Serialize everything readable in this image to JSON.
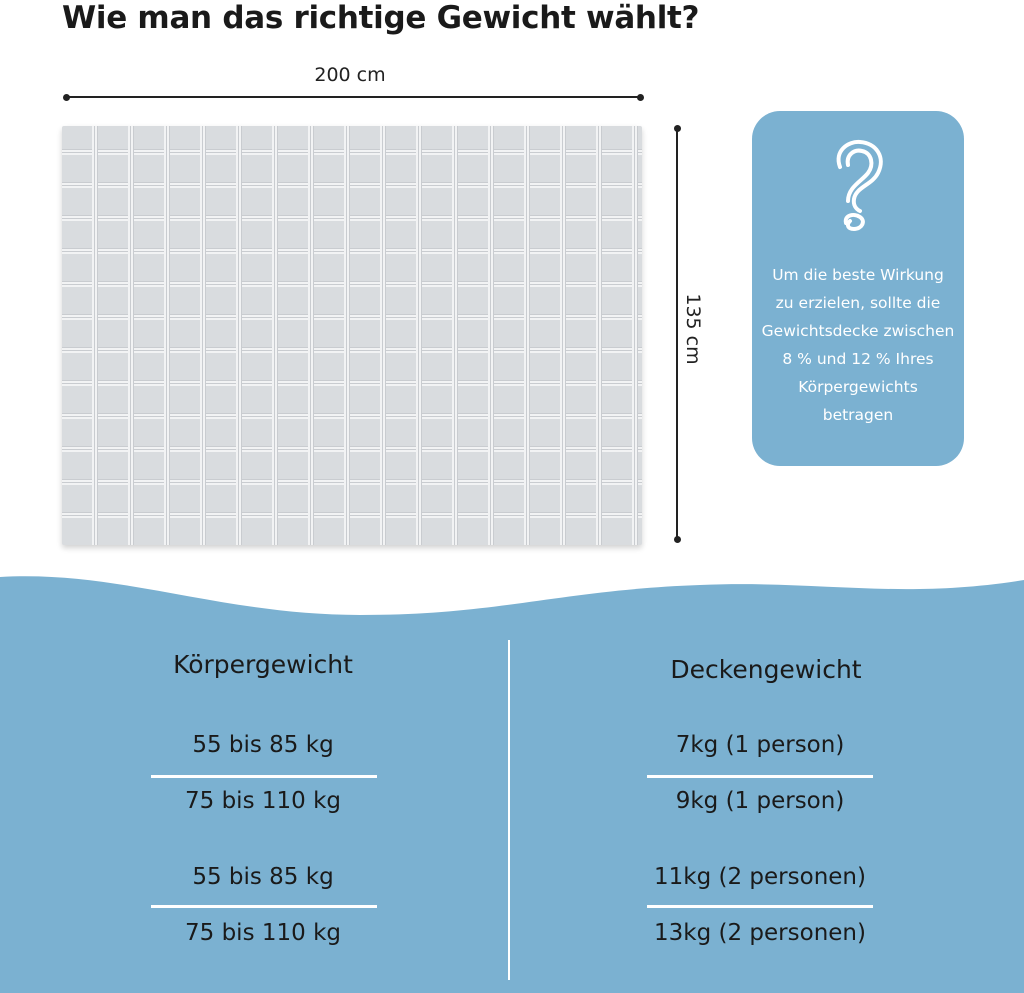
{
  "title": "Wie man das richtige Gewicht wählt?",
  "dimensions": {
    "width_label": "200 cm",
    "height_label": "135 cm"
  },
  "info_box": {
    "icon": "question-mark-icon",
    "lines": [
      "Um die beste Wirkung",
      "zu erzielen, sollte die",
      "Gewichtsdecke zwischen",
      "8 % und 12 % Ihres",
      "Körpergewichts",
      "betragen"
    ]
  },
  "table": {
    "headers": [
      "Körpergewicht",
      "Deckengewicht"
    ],
    "rows": [
      [
        "55 bis 85 kg",
        "7kg (1 person)"
      ],
      [
        "75 bis 110 kg",
        "9kg (1 person)"
      ],
      [
        "55 bis 85 kg",
        "11kg (2 personen)"
      ],
      [
        "75 bis 110 kg",
        "13kg (2 personen)"
      ]
    ]
  },
  "colors": {
    "accent_blue": "#7bb1d1",
    "blanket_gray": "#d9dcdf"
  }
}
